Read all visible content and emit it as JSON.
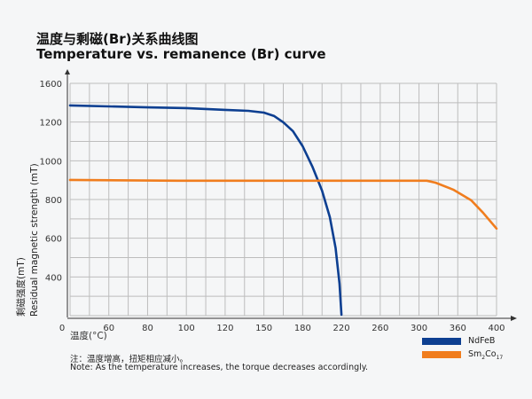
{
  "title_cn": "温度与剩磁(Br)关系曲线图",
  "title_en": "Temperature vs. remanence (Br) curve",
  "note_cn": "注：温度增高，扭矩相应减小。",
  "note_en": "Note: As the temperature increases, the torque decreases accordingly.",
  "chart_data": {
    "type": "line",
    "xlabel": "温度(°C)",
    "ylabel_cn": "剩磁强度(mT)",
    "ylabel_en": "Residual magnetic strength (mT)",
    "x_ticks": [
      "0",
      "60",
      "80",
      "100",
      "120",
      "150",
      "180",
      "220",
      "260",
      "300",
      "360",
      "400"
    ],
    "y_ticks": [
      "1600",
      "1200",
      "1000",
      "800",
      "600",
      "400"
    ],
    "grid": true,
    "legend_position": "bottom-right",
    "series": [
      {
        "name": "NdFeB",
        "name_main": "NdFeB",
        "name_sub": "",
        "name_tail": "",
        "color": "#0d3f91",
        "x": [
          0,
          60,
          80,
          100,
          120,
          138,
          150,
          158,
          165,
          172.5,
          180,
          190,
          200,
          208,
          214,
          218,
          220
        ],
        "y": [
          1372,
          1362,
          1352,
          1344,
          1326,
          1316,
          1298,
          1262,
          1199,
          1153,
          1075,
          970,
          846,
          709,
          549,
          366,
          205
        ]
      },
      {
        "name": "Sm2Co17",
        "name_main": "Sm",
        "name_sub": "2",
        "name_tail": "Co",
        "name_sub2": "17",
        "color": "#f07d1e",
        "x": [
          0,
          95.5,
          151,
          312,
          325.5,
          353,
          373.8,
          386,
          400
        ],
        "y": [
          901,
          897,
          897,
          897,
          887,
          851,
          796,
          732,
          650
        ]
      }
    ]
  }
}
